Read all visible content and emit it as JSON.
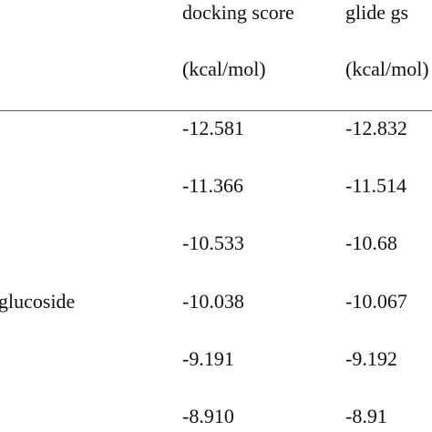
{
  "table": {
    "header": {
      "row1": [
        "docking score",
        "glide   gs"
      ],
      "row2": [
        "(kcal/mol)",
        "(kcal/mol)"
      ]
    },
    "rows": [
      [
        "",
        "-12.581",
        "-12.832"
      ],
      [
        "",
        "-11.366",
        "-11.514"
      ],
      [
        "",
        "-10.533",
        "-10.68"
      ],
      [
        "glucoside",
        "-10.038",
        "-10.067"
      ],
      [
        "",
        "-9.191",
        "-9.192"
      ],
      [
        "",
        "-8.910",
        "-8.91"
      ]
    ]
  }
}
